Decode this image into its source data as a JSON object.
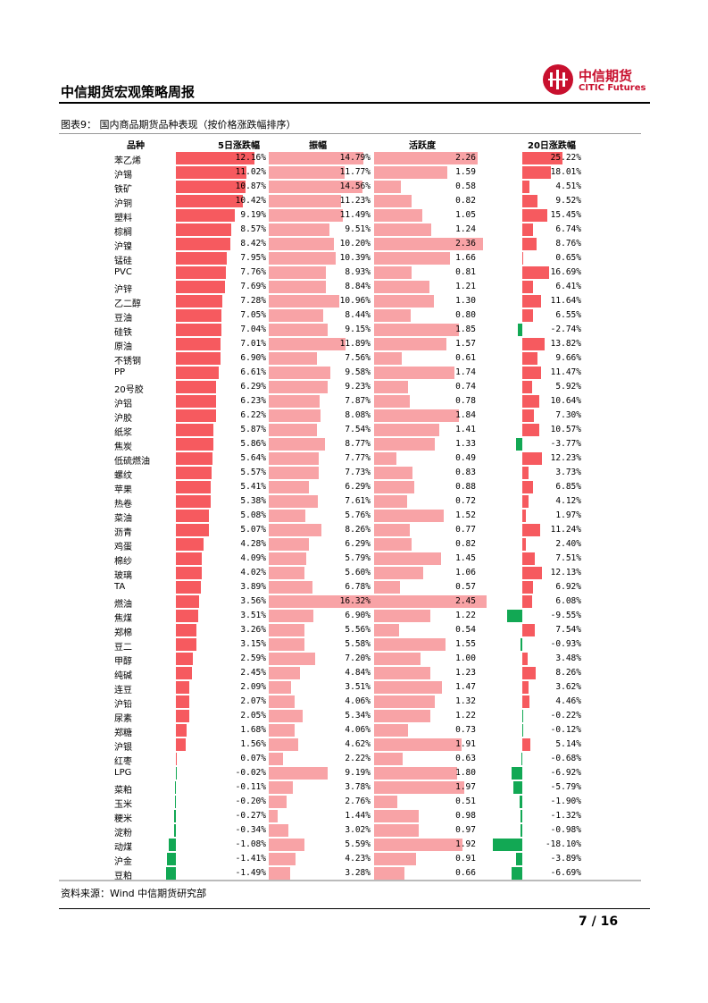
{
  "header": {
    "title": "中信期货宏观策略周报"
  },
  "logo": {
    "cn": "中信期货",
    "en": "CITIC Futures"
  },
  "figure": {
    "caption": "图表9：  国内商品期货品种表现（按价格涨跌幅排序）"
  },
  "columns": {
    "name": "品种",
    "d5": "5日涨跌幅",
    "amp": "振幅",
    "act": "活跃度",
    "d20": "20日涨跌幅"
  },
  "colors": {
    "pos_strong": "#f65a5f",
    "pos_light": "#f8a3a6",
    "neg": "#12a854"
  },
  "rows": [
    {
      "name": "苯乙烯",
      "d5": "12.16%",
      "amp": "14.79%",
      "act": "2.26",
      "d20": "25.22%"
    },
    {
      "name": "沪锡",
      "d5": "11.02%",
      "amp": "11.77%",
      "act": "1.59",
      "d20": "18.01%"
    },
    {
      "name": "铁矿",
      "d5": "10.87%",
      "amp": "14.56%",
      "act": "0.58",
      "d20": "4.51%"
    },
    {
      "name": "沪铜",
      "d5": "10.42%",
      "amp": "11.23%",
      "act": "0.82",
      "d20": "9.52%"
    },
    {
      "name": "塑料",
      "d5": "9.19%",
      "amp": "11.49%",
      "act": "1.05",
      "d20": "15.45%"
    },
    {
      "name": "棕榈",
      "d5": "8.57%",
      "amp": "9.51%",
      "act": "1.24",
      "d20": "6.74%"
    },
    {
      "name": "沪镍",
      "d5": "8.42%",
      "amp": "10.20%",
      "act": "2.36",
      "d20": "8.76%"
    },
    {
      "name": "锰硅",
      "d5": "7.95%",
      "amp": "10.39%",
      "act": "1.66",
      "d20": "0.65%"
    },
    {
      "name": "PVC",
      "d5": "7.76%",
      "amp": "8.93%",
      "act": "0.81",
      "d20": "16.69%"
    },
    {
      "name": "沪锌",
      "d5": "7.69%",
      "amp": "8.84%",
      "act": "1.21",
      "d20": "6.41%"
    },
    {
      "name": "乙二醇",
      "d5": "7.28%",
      "amp": "10.96%",
      "act": "1.30",
      "d20": "11.64%"
    },
    {
      "name": "豆油",
      "d5": "7.05%",
      "amp": "8.44%",
      "act": "0.80",
      "d20": "6.55%"
    },
    {
      "name": "硅铁",
      "d5": "7.04%",
      "amp": "9.15%",
      "act": "1.85",
      "d20": "-2.74%"
    },
    {
      "name": "原油",
      "d5": "7.01%",
      "amp": "11.89%",
      "act": "1.57",
      "d20": "13.82%"
    },
    {
      "name": "不锈钢",
      "d5": "6.90%",
      "amp": "7.56%",
      "act": "0.61",
      "d20": "9.66%"
    },
    {
      "name": "PP",
      "d5": "6.61%",
      "amp": "9.58%",
      "act": "1.74",
      "d20": "11.47%"
    },
    {
      "name": "20号胶",
      "d5": "6.29%",
      "amp": "9.23%",
      "act": "0.74",
      "d20": "5.92%"
    },
    {
      "name": "沪铝",
      "d5": "6.23%",
      "amp": "7.87%",
      "act": "0.78",
      "d20": "10.64%"
    },
    {
      "name": "沪胶",
      "d5": "6.22%",
      "amp": "8.08%",
      "act": "1.84",
      "d20": "7.30%"
    },
    {
      "name": "纸浆",
      "d5": "5.87%",
      "amp": "7.54%",
      "act": "1.41",
      "d20": "10.57%"
    },
    {
      "name": "焦炭",
      "d5": "5.86%",
      "amp": "8.77%",
      "act": "1.33",
      "d20": "-3.77%"
    },
    {
      "name": "低硫燃油",
      "d5": "5.64%",
      "amp": "7.77%",
      "act": "0.49",
      "d20": "12.23%"
    },
    {
      "name": "螺纹",
      "d5": "5.57%",
      "amp": "7.73%",
      "act": "0.83",
      "d20": "3.73%"
    },
    {
      "name": "苹果",
      "d5": "5.41%",
      "amp": "6.29%",
      "act": "0.88",
      "d20": "6.85%"
    },
    {
      "name": "热卷",
      "d5": "5.38%",
      "amp": "7.61%",
      "act": "0.72",
      "d20": "4.12%"
    },
    {
      "name": "菜油",
      "d5": "5.08%",
      "amp": "5.76%",
      "act": "1.52",
      "d20": "1.97%"
    },
    {
      "name": "沥青",
      "d5": "5.07%",
      "amp": "8.26%",
      "act": "0.77",
      "d20": "11.24%"
    },
    {
      "name": "鸡蛋",
      "d5": "4.28%",
      "amp": "6.29%",
      "act": "0.82",
      "d20": "2.40%"
    },
    {
      "name": "棉纱",
      "d5": "4.09%",
      "amp": "5.79%",
      "act": "1.45",
      "d20": "7.51%"
    },
    {
      "name": "玻璃",
      "d5": "4.02%",
      "amp": "5.60%",
      "act": "1.06",
      "d20": "12.13%"
    },
    {
      "name": "TA",
      "d5": "3.89%",
      "amp": "6.78%",
      "act": "0.57",
      "d20": "6.92%"
    },
    {
      "name": "燃油",
      "d5": "3.56%",
      "amp": "16.32%",
      "act": "2.45",
      "d20": "6.08%"
    },
    {
      "name": "焦煤",
      "d5": "3.51%",
      "amp": "6.90%",
      "act": "1.22",
      "d20": "-9.55%"
    },
    {
      "name": "郑棉",
      "d5": "3.26%",
      "amp": "5.56%",
      "act": "0.54",
      "d20": "7.54%"
    },
    {
      "name": "豆二",
      "d5": "3.15%",
      "amp": "5.58%",
      "act": "1.55",
      "d20": "-0.93%"
    },
    {
      "name": "甲醇",
      "d5": "2.59%",
      "amp": "7.20%",
      "act": "1.00",
      "d20": "3.48%"
    },
    {
      "name": "纯碱",
      "d5": "2.45%",
      "amp": "4.84%",
      "act": "1.23",
      "d20": "8.26%"
    },
    {
      "name": "连豆",
      "d5": "2.09%",
      "amp": "3.51%",
      "act": "1.47",
      "d20": "3.62%"
    },
    {
      "name": "沪铅",
      "d5": "2.07%",
      "amp": "4.06%",
      "act": "1.32",
      "d20": "4.46%"
    },
    {
      "name": "尿素",
      "d5": "2.05%",
      "amp": "5.34%",
      "act": "1.22",
      "d20": "-0.22%"
    },
    {
      "name": "郑糖",
      "d5": "1.68%",
      "amp": "4.06%",
      "act": "0.73",
      "d20": "-0.12%"
    },
    {
      "name": "沪银",
      "d5": "1.56%",
      "amp": "4.62%",
      "act": "1.91",
      "d20": "5.14%"
    },
    {
      "name": "红枣",
      "d5": "0.07%",
      "amp": "2.22%",
      "act": "0.63",
      "d20": "-0.68%"
    },
    {
      "name": "LPG",
      "d5": "-0.02%",
      "amp": "9.19%",
      "act": "1.80",
      "d20": "-6.92%"
    },
    {
      "name": "菜粕",
      "d5": "-0.11%",
      "amp": "3.78%",
      "act": "1.97",
      "d20": "-5.79%"
    },
    {
      "name": "玉米",
      "d5": "-0.20%",
      "amp": "2.76%",
      "act": "0.51",
      "d20": "-1.90%"
    },
    {
      "name": "粳米",
      "d5": "-0.27%",
      "amp": "1.44%",
      "act": "0.98",
      "d20": "-1.32%"
    },
    {
      "name": "淀粉",
      "d5": "-0.34%",
      "amp": "3.02%",
      "act": "0.97",
      "d20": "-0.98%"
    },
    {
      "name": "动煤",
      "d5": "-1.08%",
      "amp": "5.59%",
      "act": "1.92",
      "d20": "-18.10%"
    },
    {
      "name": "沪金",
      "d5": "-1.41%",
      "amp": "4.23%",
      "act": "0.91",
      "d20": "-3.89%"
    },
    {
      "name": "豆粕",
      "d5": "-1.49%",
      "amp": "3.28%",
      "act": "0.66",
      "d20": "-6.69%"
    }
  ],
  "source": "资料来源：Wind  中信期货研究部",
  "page": "7 / 16"
}
